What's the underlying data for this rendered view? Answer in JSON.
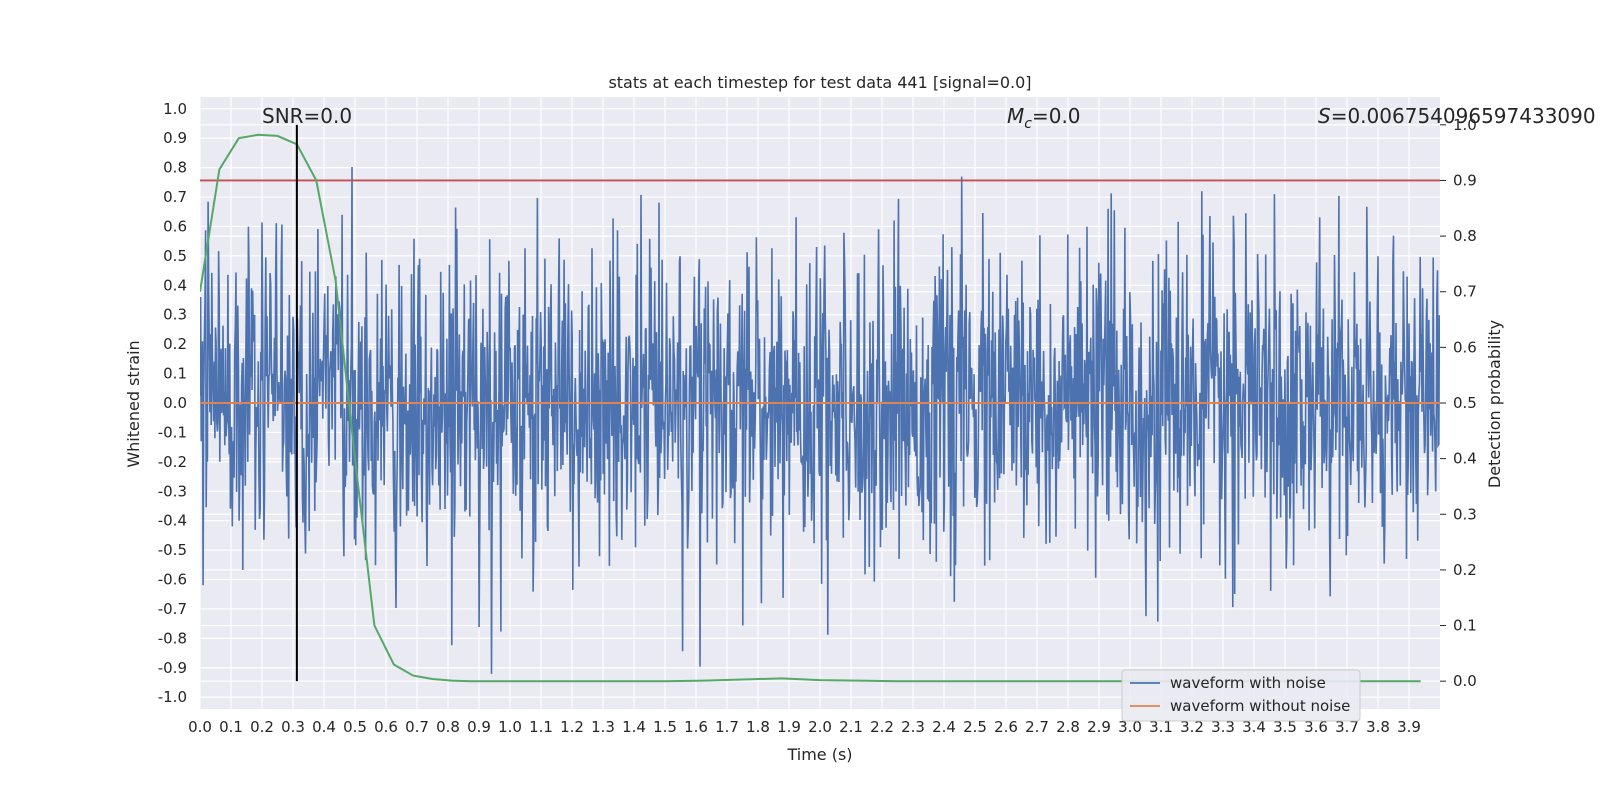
{
  "chart_data": {
    "type": "line",
    "title": "stats at each timestep for test data 441 [signal=0.0]",
    "xlabel": "Time (s)",
    "ylabel": "Whitened strain",
    "y2label": "Detection probability",
    "xlim": [
      0.0,
      4.0
    ],
    "ylim": [
      -1.04,
      1.04
    ],
    "y2lim": [
      -0.05,
      1.05
    ],
    "grid": true,
    "legend_position": "lower right",
    "x_ticks": [
      "0.0",
      "0.1",
      "0.2",
      "0.3",
      "0.4",
      "0.5",
      "0.6",
      "0.7",
      "0.8",
      "0.9",
      "1.0",
      "1.1",
      "1.2",
      "1.3",
      "1.4",
      "1.5",
      "1.6",
      "1.7",
      "1.8",
      "1.9",
      "2.0",
      "2.1",
      "2.2",
      "2.3",
      "2.4",
      "2.5",
      "2.6",
      "2.7",
      "2.8",
      "2.9",
      "3.0",
      "3.1",
      "3.2",
      "3.3",
      "3.4",
      "3.5",
      "3.6",
      "3.7",
      "3.8",
      "3.9"
    ],
    "y_ticks": [
      "1.0",
      "0.9",
      "0.8",
      "0.7",
      "0.6",
      "0.5",
      "0.4",
      "0.3",
      "0.2",
      "0.1",
      "0.0",
      "-0.1",
      "-0.2",
      "-0.3",
      "-0.4",
      "-0.5",
      "-0.6",
      "-0.7",
      "-0.8",
      "-0.9",
      "-1.0"
    ],
    "y2_ticks": [
      "1.0",
      "0.9",
      "0.8",
      "0.7",
      "0.6",
      "0.5",
      "0.4",
      "0.3",
      "0.2",
      "0.1",
      "0.0"
    ],
    "annotations": {
      "snr": "SNR=0.0",
      "mc_symbol": "M",
      "mc_sub": "c",
      "mc_value": "=0.0",
      "s_symbol": "S",
      "s_value": "=0.006754096597433090"
    },
    "series": [
      {
        "name": "waveform with noise",
        "color": "#4c72b0",
        "kind": "noise",
        "typical_amplitude": 0.3,
        "peak_amplitude": 1.0
      },
      {
        "name": "waveform without noise",
        "color": "#dd8452",
        "x": [
          0.0,
          4.0
        ],
        "y": [
          0.0,
          0.0
        ]
      },
      {
        "color": "#55a868",
        "axis": "right",
        "x": [
          0.0,
          0.0625,
          0.125,
          0.1875,
          0.25,
          0.3125,
          0.375,
          0.4375,
          0.5,
          0.5625,
          0.625,
          0.6875,
          0.75,
          0.8125,
          0.875,
          1.0,
          1.25,
          1.5,
          1.625,
          1.75,
          1.875,
          2.0,
          2.125,
          2.25,
          2.5,
          3.0,
          3.5,
          3.9375
        ],
        "y": [
          0.7,
          0.92,
          0.976,
          0.982,
          0.98,
          0.965,
          0.9,
          0.72,
          0.4,
          0.1,
          0.03,
          0.01,
          0.004,
          0.001,
          0.0,
          0.0,
          0.0,
          0.0,
          0.001,
          0.003,
          0.005,
          0.002,
          0.001,
          0.0,
          0.0,
          0.0,
          0.0,
          0.0
        ]
      }
    ],
    "threshold_line": {
      "y2": 0.9,
      "color": "#c44e52"
    },
    "marker_line": {
      "x": 0.3125,
      "color": "#000000"
    }
  }
}
